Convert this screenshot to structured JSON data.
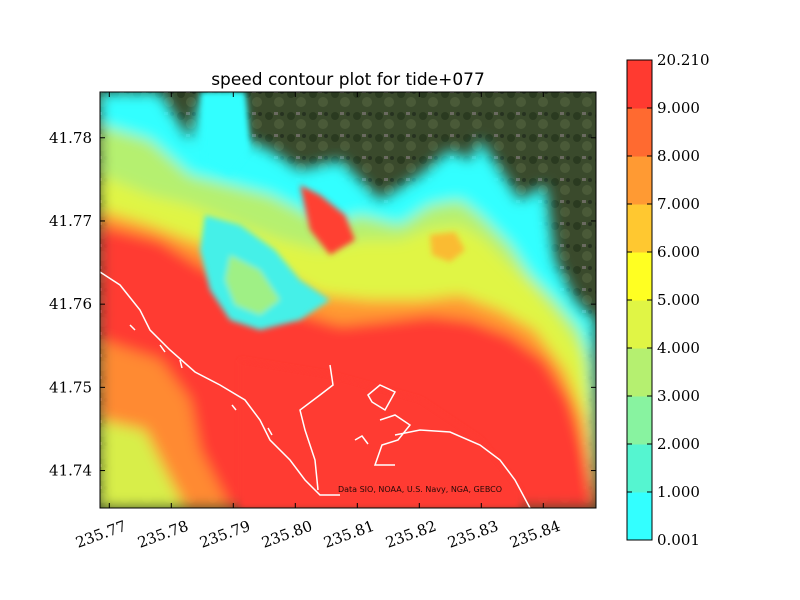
{
  "chart_data": {
    "type": "heatmap",
    "title": "speed contour plot for tide+077",
    "xlabel": "",
    "ylabel": "",
    "xlim": [
      235.7685,
      235.8485
    ],
    "ylim": [
      41.7355,
      41.7855
    ],
    "x_ticks": [
      "235.77",
      "235.78",
      "235.79",
      "235.80",
      "235.81",
      "235.82",
      "235.83",
      "235.84"
    ],
    "y_ticks": [
      "41.74",
      "41.75",
      "41.76",
      "41.77",
      "41.78"
    ],
    "colorbar": {
      "levels": [
        "0.001",
        "1.000",
        "2.000",
        "3.000",
        "4.000",
        "5.000",
        "6.000",
        "7.000",
        "8.000",
        "9.000",
        "20.210"
      ],
      "colors": [
        "#33ffff",
        "#55f5d0",
        "#88f3a0",
        "#b5f070",
        "#e0f545",
        "#ffff22",
        "#ffc830",
        "#ff9a33",
        "#ff6a30",
        "#ff3a30"
      ]
    },
    "attribution": "Data SIO, NOAA, U.S. Navy, NGA, GEBCO"
  }
}
